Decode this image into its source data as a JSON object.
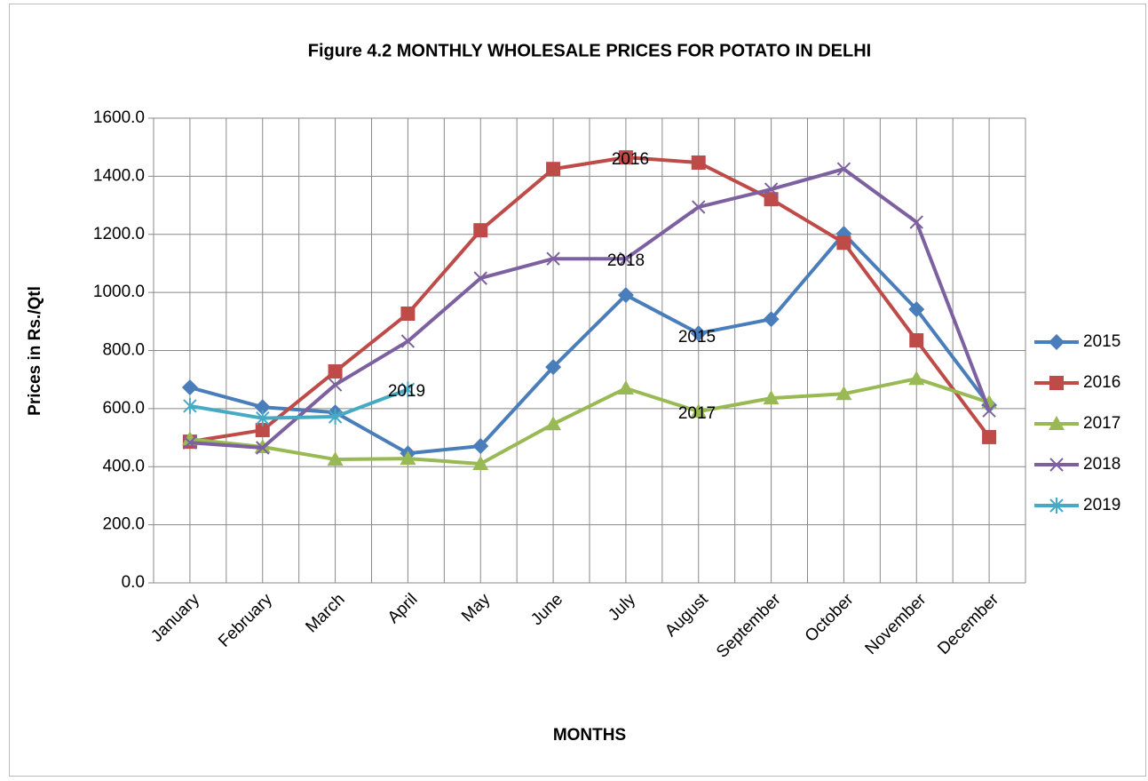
{
  "chart_data": {
    "type": "line",
    "title": "Figure 4.2 MONTHLY WHOLESALE PRICES FOR POTATO IN DELHI",
    "x_label": "MONTHS",
    "y_label": "Prices in Rs./Qtl",
    "categories": [
      "January",
      "February",
      "March",
      "April",
      "May",
      "June",
      "July",
      "August",
      "September",
      "October",
      "November",
      "December"
    ],
    "series": [
      {
        "name": "2015",
        "color": "#4a7ebb",
        "marker": "diamond",
        "values": [
          673,
          605,
          587,
          446,
          471,
          743,
          991,
          859,
          908,
          1202,
          942,
          612
        ]
      },
      {
        "name": "2016",
        "color": "#be4b48",
        "marker": "square",
        "values": [
          486,
          526,
          728,
          927,
          1214,
          1425,
          1465,
          1447,
          1321,
          1171,
          835,
          502
        ]
      },
      {
        "name": "2017",
        "color": "#98b954",
        "marker": "triangle",
        "values": [
          495,
          468,
          425,
          428,
          410,
          547,
          670,
          590,
          636,
          651,
          703,
          621
        ]
      },
      {
        "name": "2018",
        "color": "#7d60a0",
        "marker": "x",
        "values": [
          483,
          465,
          682,
          832,
          1049,
          1116,
          1116,
          1294,
          1355,
          1425,
          1242,
          593
        ]
      },
      {
        "name": "2019",
        "color": "#46aac5",
        "marker": "star",
        "values": [
          609,
          567,
          572,
          666,
          null,
          null,
          null,
          null,
          null,
          null,
          null,
          null
        ]
      }
    ],
    "annotations": [
      "2016",
      "2018",
      "2015",
      "2017",
      "2019"
    ],
    "ylim": [
      0,
      1600
    ],
    "yticks": [
      {
        "value": 0,
        "label": "0.0"
      },
      {
        "value": 200,
        "label": "200.0"
      },
      {
        "value": 400,
        "label": "400.0"
      },
      {
        "value": 600,
        "label": "600.0"
      },
      {
        "value": 800,
        "label": "800.0"
      },
      {
        "value": 1000,
        "label": "1000.0"
      },
      {
        "value": 1200,
        "label": "1200.0"
      },
      {
        "value": 1400,
        "label": "1400.0"
      },
      {
        "value": 1600,
        "label": "1600.0"
      }
    ],
    "grid": true,
    "legend": "right"
  }
}
